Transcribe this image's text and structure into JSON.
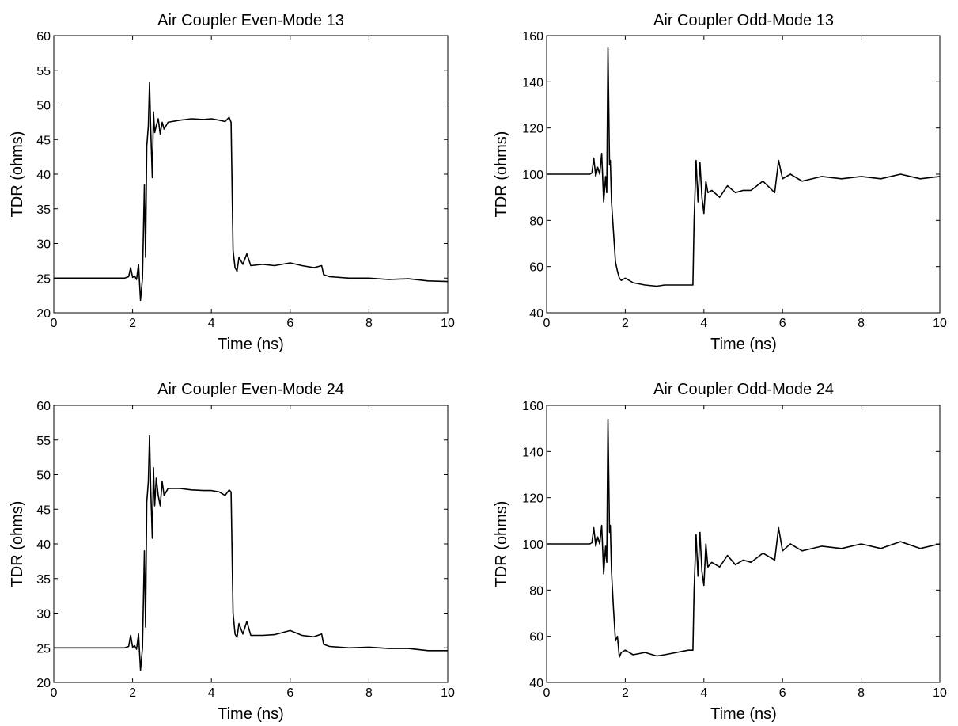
{
  "chart_data": [
    {
      "type": "line",
      "title": "Air Coupler Even-Mode 13",
      "xlabel": "Time (ns)",
      "ylabel": "TDR (ohms)",
      "xlim": [
        0,
        10
      ],
      "ylim": [
        20,
        60
      ],
      "xticks": [
        0,
        2,
        4,
        6,
        8,
        10
      ],
      "yticks": [
        20,
        25,
        30,
        35,
        40,
        45,
        50,
        55,
        60
      ],
      "grid": false,
      "line_color": "#000000",
      "series": [
        {
          "x": [
            0,
            1.8,
            1.9,
            1.95,
            2.0,
            2.05,
            2.1,
            2.15,
            2.2,
            2.25,
            2.3,
            2.33,
            2.36,
            2.4,
            2.43,
            2.46,
            2.5,
            2.53,
            2.56,
            2.6,
            2.65,
            2.7,
            2.75,
            2.8,
            2.9,
            3.0,
            3.2,
            3.5,
            3.8,
            4.0,
            4.2,
            4.35,
            4.45,
            4.5,
            4.55,
            4.6,
            4.65,
            4.7,
            4.8,
            4.9,
            5.0,
            5.3,
            5.6,
            6.0,
            6.3,
            6.6,
            6.8,
            6.85,
            7.0,
            7.5,
            8.0,
            8.5,
            9.0,
            9.5,
            10.0
          ],
          "y": [
            25.0,
            25.0,
            25.2,
            26.5,
            25.1,
            25.3,
            24.8,
            27.0,
            21.8,
            25.0,
            38.5,
            28.0,
            44.0,
            47.0,
            53.2,
            46.5,
            39.5,
            49.0,
            46.0,
            47.0,
            48.0,
            45.8,
            47.5,
            46.5,
            47.5,
            47.6,
            47.8,
            48.0,
            47.9,
            48.0,
            47.8,
            47.6,
            48.2,
            47.5,
            29.0,
            26.5,
            26.0,
            28.0,
            27.0,
            28.5,
            26.8,
            27.0,
            26.8,
            27.2,
            26.8,
            26.5,
            26.8,
            25.5,
            25.2,
            25.0,
            25.0,
            24.8,
            24.9,
            24.6,
            24.5
          ]
        }
      ]
    },
    {
      "type": "line",
      "title": "Air Coupler Odd-Mode 13",
      "xlabel": "Time (ns)",
      "ylabel": "TDR (ohms)",
      "xlim": [
        0,
        10
      ],
      "ylim": [
        40,
        160
      ],
      "xticks": [
        0,
        2,
        4,
        6,
        8,
        10
      ],
      "yticks": [
        40,
        60,
        80,
        100,
        120,
        140,
        160
      ],
      "grid": false,
      "line_color": "#000000",
      "series": [
        {
          "x": [
            0,
            1.1,
            1.15,
            1.2,
            1.25,
            1.3,
            1.35,
            1.4,
            1.45,
            1.5,
            1.53,
            1.56,
            1.6,
            1.62,
            1.65,
            1.7,
            1.75,
            1.8,
            1.85,
            1.9,
            2.0,
            2.2,
            2.5,
            2.8,
            3.0,
            3.3,
            3.6,
            3.72,
            3.75,
            3.8,
            3.85,
            3.9,
            3.95,
            4.0,
            4.05,
            4.1,
            4.2,
            4.4,
            4.6,
            4.8,
            5.0,
            5.2,
            5.5,
            5.8,
            5.9,
            6.0,
            6.2,
            6.5,
            7.0,
            7.5,
            8.0,
            8.5,
            9.0,
            9.5,
            10.0
          ],
          "y": [
            100,
            100,
            100.5,
            107,
            99,
            103,
            100,
            109,
            88,
            99,
            92,
            155,
            104,
            106,
            88,
            75,
            62,
            58,
            55,
            54,
            55,
            53,
            52,
            51.5,
            52,
            52,
            52,
            52,
            80,
            106,
            88,
            105,
            90,
            83,
            97,
            92,
            93,
            90,
            95,
            92,
            93,
            93,
            97,
            92,
            106,
            98,
            100,
            97,
            99,
            98,
            99,
            98,
            100,
            98,
            99
          ]
        }
      ]
    },
    {
      "type": "line",
      "title": "Air Coupler Even-Mode 24",
      "xlabel": "Time (ns)",
      "ylabel": "TDR (ohms)",
      "xlim": [
        0,
        10
      ],
      "ylim": [
        20,
        60
      ],
      "xticks": [
        0,
        2,
        4,
        6,
        8,
        10
      ],
      "yticks": [
        20,
        25,
        30,
        35,
        40,
        45,
        50,
        55,
        60
      ],
      "grid": false,
      "line_color": "#000000",
      "series": [
        {
          "x": [
            0,
            1.8,
            1.9,
            1.95,
            2.0,
            2.05,
            2.1,
            2.15,
            2.2,
            2.25,
            2.3,
            2.33,
            2.36,
            2.4,
            2.43,
            2.46,
            2.5,
            2.53,
            2.56,
            2.6,
            2.65,
            2.7,
            2.75,
            2.8,
            2.9,
            3.0,
            3.2,
            3.5,
            3.8,
            4.0,
            4.2,
            4.35,
            4.45,
            4.5,
            4.55,
            4.6,
            4.65,
            4.7,
            4.8,
            4.9,
            5.0,
            5.3,
            5.6,
            6.0,
            6.3,
            6.6,
            6.8,
            6.85,
            7.0,
            7.5,
            8.0,
            8.5,
            9.0,
            9.5,
            10.0
          ],
          "y": [
            25.0,
            25.0,
            25.2,
            26.8,
            25.1,
            25.3,
            24.8,
            27.0,
            21.8,
            25.0,
            39.0,
            28.0,
            46.0,
            49.0,
            55.6,
            48.0,
            40.8,
            51.0,
            45.5,
            49.5,
            47.0,
            45.5,
            49.0,
            47.0,
            48.0,
            48.0,
            48.0,
            47.8,
            47.7,
            47.7,
            47.5,
            47.0,
            47.8,
            47.5,
            30.0,
            27.0,
            26.5,
            28.5,
            27.0,
            28.8,
            26.8,
            26.8,
            26.9,
            27.5,
            26.8,
            26.6,
            27.0,
            25.5,
            25.2,
            25.0,
            25.1,
            24.9,
            24.9,
            24.6,
            24.6
          ]
        }
      ]
    },
    {
      "type": "line",
      "title": "Air Coupler Odd-Mode 24",
      "xlabel": "Time (ns)",
      "ylabel": "TDR (ohms)",
      "xlim": [
        0,
        10
      ],
      "ylim": [
        40,
        160
      ],
      "xticks": [
        0,
        2,
        4,
        6,
        8,
        10
      ],
      "yticks": [
        40,
        60,
        80,
        100,
        120,
        140,
        160
      ],
      "grid": false,
      "line_color": "#000000",
      "series": [
        {
          "x": [
            0,
            1.1,
            1.15,
            1.2,
            1.25,
            1.3,
            1.35,
            1.4,
            1.45,
            1.5,
            1.53,
            1.56,
            1.6,
            1.62,
            1.65,
            1.7,
            1.75,
            1.8,
            1.85,
            1.9,
            2.0,
            2.2,
            2.5,
            2.8,
            3.0,
            3.3,
            3.6,
            3.72,
            3.75,
            3.8,
            3.85,
            3.9,
            3.95,
            4.0,
            4.05,
            4.1,
            4.2,
            4.4,
            4.6,
            4.8,
            5.0,
            5.2,
            5.5,
            5.8,
            5.9,
            6.0,
            6.2,
            6.5,
            7.0,
            7.5,
            8.0,
            8.5,
            9.0,
            9.5,
            10.0
          ],
          "y": [
            100,
            100,
            100.5,
            107,
            99,
            103,
            100,
            108,
            87,
            99,
            92,
            154,
            105,
            108,
            88,
            72,
            58,
            60,
            51,
            53,
            54,
            52,
            53,
            51.5,
            52,
            53,
            54,
            54,
            80,
            104,
            86,
            105,
            88,
            82,
            100,
            90,
            92,
            90,
            95,
            91,
            93,
            92,
            96,
            93,
            107,
            97,
            100,
            97,
            99,
            98,
            100,
            98,
            101,
            98,
            100
          ]
        }
      ]
    }
  ]
}
